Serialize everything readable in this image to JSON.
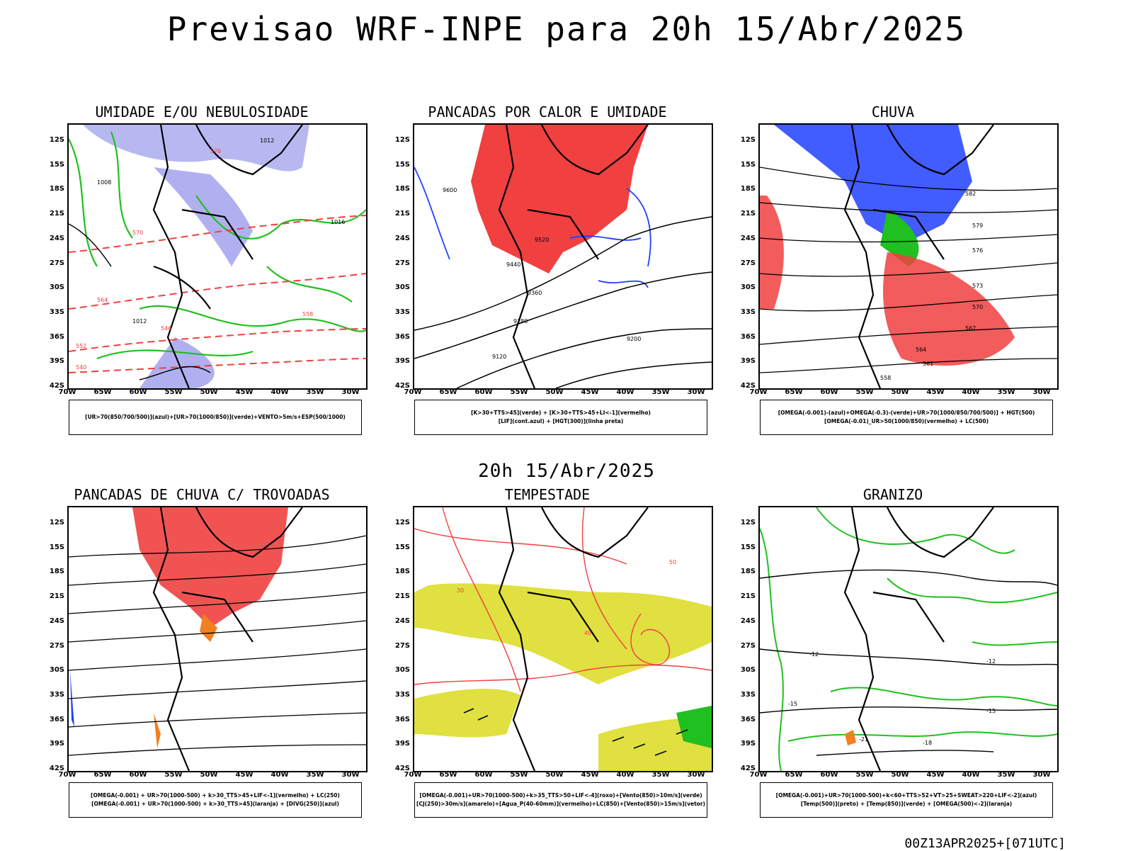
{
  "header": {
    "title": "Previsao WRF-INPE  para 20h 15/Abr/2025",
    "mid_title": "20h 15/Abr/2025",
    "footer_stamp": "00Z13APR2025+[071UTC]"
  },
  "axes": {
    "lat_ticks": [
      "12S",
      "15S",
      "18S",
      "21S",
      "24S",
      "27S",
      "30S",
      "33S",
      "36S",
      "39S",
      "42S"
    ],
    "lon_ticks": [
      "70W",
      "65W",
      "60W",
      "55W",
      "50W",
      "45W",
      "40W",
      "35W",
      "30W"
    ]
  },
  "panels": [
    {
      "title": "UMIDADE E/OU NEBULOSIDADE",
      "legend": [
        "[UR>70(850/700/500)](azul)+[UR>70(1000/850)](verde)+VENTO>5m/s+ESP(500/1000)"
      ],
      "labels": [
        "1012",
        "1008",
        "1016",
        "1012",
        "576",
        "570",
        "564",
        "558",
        "552",
        "546",
        "540"
      ]
    },
    {
      "title": "PANCADAS POR CALOR E UMIDADE",
      "legend": [
        "[K>30+TTS>45](verde) + [K>30+TTS>45+LI<-1](vermelho)",
        "[LIF](cont.azul) + [HGT(300)](linha preta)"
      ],
      "labels": [
        "9600",
        "9520",
        "9440",
        "9360",
        "9280",
        "9200",
        "9120"
      ]
    },
    {
      "title": "CHUVA",
      "legend": [
        "[OMEGA(-0.001)-(azul)+OMEGA(-0.3)-(verde)+UR>70(1000/850/700/500)] + HGT(500)",
        "[OMEGA(-0.01)_UR>50(1000/850)(vermelho) + LC(500)"
      ],
      "labels": [
        "582",
        "579",
        "576",
        "573",
        "570",
        "567",
        "564",
        "561",
        "558"
      ]
    },
    {
      "title": "PANCADAS DE CHUVA C/ TROVOADAS",
      "legend": [
        "[OMEGA(-0.001) + UR>70(1000-500) + k>30_TTS>45+LIF<-1](vermelho) + LC(250)",
        "[OMEGA(-0.001) + UR>70(1000-500) + k>30_TTS>45](laranja) + [DIVG(250)](azul)"
      ],
      "labels": []
    },
    {
      "title": "TEMPESTADE",
      "legend": [
        "[OMEGA(-0.001)+UR>70(1000-500)+k>35_TTS>50+LIF<-4](roxo)+[Vento(850)>10m/s](verde)",
        "[CJ(250)>30m/s](amarelo)+[Agua_P(40-60mm)](vermelho)+LC(850)+[Vento(850)>15m/s](vetor)"
      ],
      "labels": [
        "50",
        "40",
        "30"
      ]
    },
    {
      "title": "GRANIZO",
      "legend": [
        "[OMEGA(-0.001)+UR>70(1000-500)+k<60+TTS>52+VT>25+SWEAT>220+LIF<-2](azul)",
        "[Temp(500)](preto) + [Temp(850)](verde) + [OMEGA(500)<-2](laranja)"
      ],
      "labels": [
        "-12",
        "-12",
        "-15",
        "-15",
        "-18",
        "-21"
      ]
    }
  ],
  "colors": {
    "blue": "#2040ff",
    "green": "#20c020",
    "red": "#f04040",
    "lavender": "#b0b0f0",
    "yellow": "#e0e040",
    "orange": "#f08020",
    "teal": "#306060"
  }
}
